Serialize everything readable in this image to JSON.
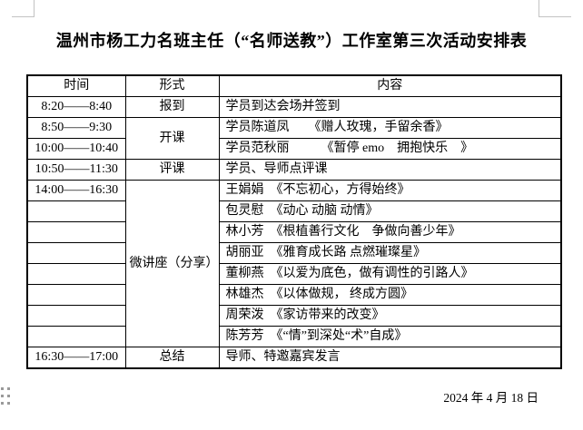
{
  "page": {
    "title": "温州市杨工力名班主任（“名师送教”）工作室第三次活动安排表",
    "date": "2024 年 4 月 18 日"
  },
  "table": {
    "headers": [
      "时间",
      "形式",
      "内容"
    ],
    "rows": [
      {
        "cells": [
          {
            "t": "8:20——8:40"
          },
          {
            "t": "报到"
          },
          {
            "t": "学员到达会场并签到"
          }
        ]
      },
      {
        "cells": [
          {
            "t": "8:50——9:30"
          },
          {
            "t": "开课",
            "rowspan": 2
          },
          {
            "t": "学员陈道凤　　《赠人玫瑰，手留余香》"
          }
        ]
      },
      {
        "cells": [
          {
            "t": "10:00——10:40"
          },
          {
            "t": "学员范秋丽　　　《暂停 emo　拥抱快乐　》"
          }
        ]
      },
      {
        "cells": [
          {
            "t": "10:50——11:30"
          },
          {
            "t": "评课"
          },
          {
            "t": "学员、导师点评课"
          }
        ]
      },
      {
        "cells": [
          {
            "t": "14:00——16:30"
          },
          {
            "t": "微讲座（分享）",
            "rowspan": 8
          },
          {
            "t": "王娟娟　《不忘初心，方得始终》"
          }
        ]
      },
      {
        "cells": [
          {
            "t": ""
          },
          {
            "t": "包灵慰　《动心 动脑 动情》"
          }
        ]
      },
      {
        "cells": [
          {
            "t": ""
          },
          {
            "t": "林小芳　《根植善行文化　争做向善少年》"
          }
        ]
      },
      {
        "cells": [
          {
            "t": ""
          },
          {
            "t": "胡丽亚　《雅育成长路 点燃璀璨星》"
          }
        ]
      },
      {
        "cells": [
          {
            "t": ""
          },
          {
            "t": "董柳燕　《以爱为底色，做有调性的引路人》"
          }
        ]
      },
      {
        "cells": [
          {
            "t": ""
          },
          {
            "t": "林雄杰　《以体做规， 终成方圆》"
          }
        ]
      },
      {
        "cells": [
          {
            "t": ""
          },
          {
            "t": "周荣泼　《家访带来的改变》"
          }
        ]
      },
      {
        "cells": [
          {
            "t": ""
          },
          {
            "t": "陈芳芳　《“情”到深处“术”自成》"
          }
        ]
      },
      {
        "cells": [
          {
            "t": "16:30——17:00"
          },
          {
            "t": "总结"
          },
          {
            "t": "导师、特邀嘉宾发言"
          }
        ]
      }
    ]
  }
}
